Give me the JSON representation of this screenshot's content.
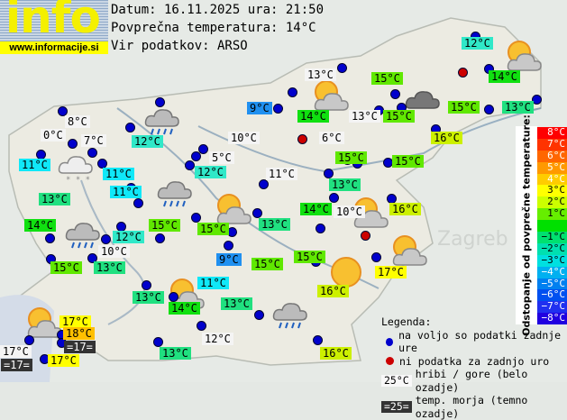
{
  "logo": {
    "text": "info",
    "url": "www.informacije.si"
  },
  "header": {
    "date_line": "Datum: 16.11.2025 ura: 21:50",
    "avg_line": "Povprečna temperatura: 14°C",
    "source_line": "Vir podatkov: ARSO"
  },
  "tone_colors": {
    "white": "#f4f4f4",
    "dark": "#333333",
    "blue": "#2090f0",
    "cyan": "#10e8f8",
    "aqua": "#30e8c8",
    "teal": "#20e080",
    "green": "#10e010",
    "lime": "#60e800",
    "yg": "#ccf000",
    "yellow": "#ffff00",
    "orange": "#ffc000"
  },
  "stations": [
    {
      "t": "12°C",
      "tone": "aqua"
    },
    {
      "t": "13°C",
      "tone": "white"
    },
    {
      "t": "15°C",
      "tone": "lime"
    },
    {
      "t": "14°C",
      "tone": "green"
    },
    {
      "t": "9°C",
      "tone": "blue"
    },
    {
      "t": "14°C",
      "tone": "green"
    },
    {
      "t": "13°C",
      "tone": "white"
    },
    {
      "t": "15°C",
      "tone": "lime"
    },
    {
      "t": "15°C",
      "tone": "lime"
    },
    {
      "t": "13°C",
      "tone": "teal"
    },
    {
      "t": "16°C",
      "tone": "yg"
    },
    {
      "t": "8°C",
      "tone": "white"
    },
    {
      "t": "0°C",
      "tone": "white"
    },
    {
      "t": "7°C",
      "tone": "white"
    },
    {
      "t": "12°C",
      "tone": "aqua"
    },
    {
      "t": "10°C",
      "tone": "white"
    },
    {
      "t": "6°C",
      "tone": "white"
    },
    {
      "t": "11°C",
      "tone": "cyan"
    },
    {
      "t": "11°C",
      "tone": "cyan"
    },
    {
      "t": "5°C",
      "tone": "white"
    },
    {
      "t": "12°C",
      "tone": "aqua"
    },
    {
      "t": "11°C",
      "tone": "white"
    },
    {
      "t": "15°C",
      "tone": "lime"
    },
    {
      "t": "15°C",
      "tone": "lime"
    },
    {
      "t": "11°C",
      "tone": "cyan"
    },
    {
      "t": "13°C",
      "tone": "teal"
    },
    {
      "t": "13°C",
      "tone": "teal"
    },
    {
      "t": "14°C",
      "tone": "green"
    },
    {
      "t": "12°C",
      "tone": "aqua"
    },
    {
      "t": "15°C",
      "tone": "lime"
    },
    {
      "t": "15°C",
      "tone": "lime"
    },
    {
      "t": "13°C",
      "tone": "teal"
    },
    {
      "t": "14°C",
      "tone": "green"
    },
    {
      "t": "10°C",
      "tone": "white"
    },
    {
      "t": "16°C",
      "tone": "yg"
    },
    {
      "t": "10°C",
      "tone": "white"
    },
    {
      "t": "15°C",
      "tone": "lime"
    },
    {
      "t": "13°C",
      "tone": "teal"
    },
    {
      "t": "9°C",
      "tone": "blue"
    },
    {
      "t": "15°C",
      "tone": "lime"
    },
    {
      "t": "15°C",
      "tone": "lime"
    },
    {
      "t": "17°C",
      "tone": "yellow"
    },
    {
      "t": "11°C",
      "tone": "cyan"
    },
    {
      "t": "16°C",
      "tone": "yg"
    },
    {
      "t": "13°C",
      "tone": "teal"
    },
    {
      "t": "14°C",
      "tone": "green"
    },
    {
      "t": "13°C",
      "tone": "teal"
    },
    {
      "t": "17°C",
      "tone": "yellow"
    },
    {
      "t": "18°C",
      "tone": "orange"
    },
    {
      "t": "=17=",
      "tone": "dark"
    },
    {
      "t": "17°C",
      "tone": "white"
    },
    {
      "t": "=17=",
      "tone": "dark"
    },
    {
      "t": "17°C",
      "tone": "yellow"
    },
    {
      "t": "12°C",
      "tone": "white"
    },
    {
      "t": "13°C",
      "tone": "teal"
    },
    {
      "t": "16°C",
      "tone": "yg"
    }
  ],
  "weather_icons": [
    "sun-cloud-icon",
    "dark-cloud-icon",
    "sun-cloud-icon",
    "rain-cloud-icon",
    "snow-cloud-icon",
    "rain-cloud-icon",
    "sun-cloud-icon",
    "rain-cloud-icon",
    "sun-cloud-icon",
    "sun-cloud-icon",
    "sun-icon",
    "sun-cloud-icon",
    "rain-cloud-icon",
    "sun-cloud-icon"
  ],
  "scale": {
    "title": "Odstopanje od povprečne temperature:",
    "steps": [
      {
        "label": "8°C",
        "color": "#ff0000"
      },
      {
        "label": "7°C",
        "color": "#ff3300"
      },
      {
        "label": "6°C",
        "color": "#ff6600"
      },
      {
        "label": "5°C",
        "color": "#ff9900"
      },
      {
        "label": "4°C",
        "color": "#ffcc00"
      },
      {
        "label": "3°C",
        "color": "#ffff00"
      },
      {
        "label": "2°C",
        "color": "#ccff00"
      },
      {
        "label": "1°C",
        "color": "#66ee00"
      },
      {
        "label": "",
        "color": "#00e000"
      },
      {
        "label": "−1°C",
        "color": "#00e070"
      },
      {
        "label": "−2°C",
        "color": "#00e0b0"
      },
      {
        "label": "−3°C",
        "color": "#00e0e0"
      },
      {
        "label": "−4°C",
        "color": "#00b0f0"
      },
      {
        "label": "−5°C",
        "color": "#0080f0"
      },
      {
        "label": "−6°C",
        "color": "#0050f0"
      },
      {
        "label": "−7°C",
        "color": "#2030f0"
      },
      {
        "label": "−8°C",
        "color": "#2000e0"
      }
    ]
  },
  "legend": {
    "title": "Legenda:",
    "blue_dot": "na voljo so podatki zadnje ure",
    "red_dot": "ni podatka za zadnjo uro",
    "mountain_sample": "25°C",
    "mountain_text": "hribi / gore (belo ozadje)",
    "sea_sample": "=25=",
    "sea_text": "temp. morja (temno ozadje)"
  }
}
